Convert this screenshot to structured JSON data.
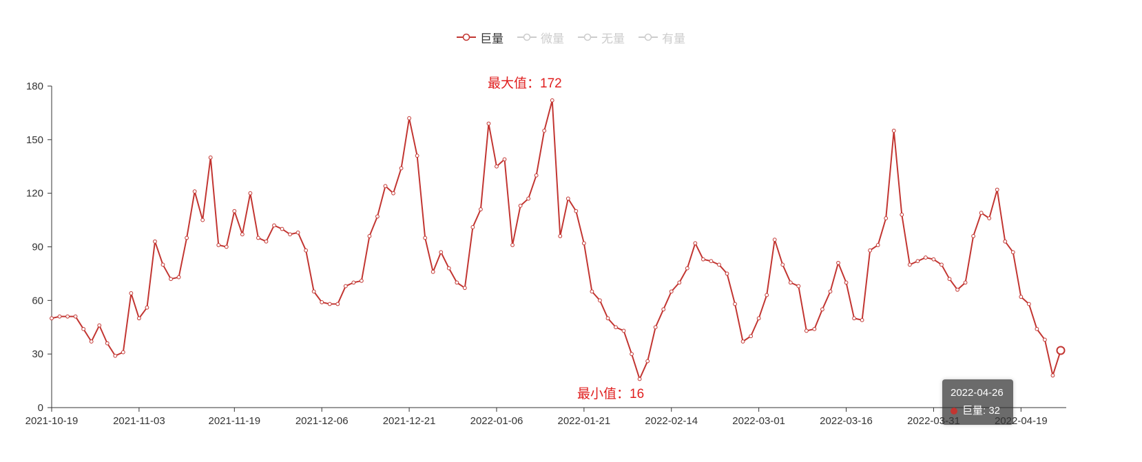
{
  "legend": {
    "items": [
      {
        "label": "巨量",
        "active": true
      },
      {
        "label": "微量",
        "active": false
      },
      {
        "label": "无量",
        "active": false
      },
      {
        "label": "有量",
        "active": false
      }
    ]
  },
  "annotations": {
    "max_label": "最大值：172",
    "min_label": "最小值：16"
  },
  "tooltip": {
    "date": "2022-04-26",
    "series": "巨量",
    "value": 32,
    "text": "巨量: 32"
  },
  "colors": {
    "series": "#c23531",
    "annotation": "#e01f1f",
    "inactive_legend": "#cccccc",
    "axis": "#333333",
    "tooltip_bg": "rgba(50,50,50,0.72)"
  },
  "chart_data": {
    "type": "line",
    "title": "",
    "legend_position": "top-center",
    "grid": false,
    "ylim": [
      0,
      180
    ],
    "y_ticks": [
      0,
      30,
      60,
      90,
      120,
      150,
      180
    ],
    "x_tick_labels": [
      "2021-10-19",
      "2021-11-03",
      "2021-11-19",
      "2021-12-06",
      "2021-12-21",
      "2022-01-06",
      "2022-01-21",
      "2022-02-14",
      "2022-03-01",
      "2022-03-16",
      "2022-03-31",
      "2022-04-19"
    ],
    "x_tick_indices": [
      0,
      11,
      23,
      34,
      45,
      56,
      67,
      78,
      89,
      100,
      111,
      122
    ],
    "x": [
      "2021-10-19",
      "2021-10-20",
      "2021-10-21",
      "2021-10-22",
      "2021-10-25",
      "2021-10-26",
      "2021-10-27",
      "2021-10-28",
      "2021-10-29",
      "2021-11-01",
      "2021-11-02",
      "2021-11-03",
      "2021-11-04",
      "2021-11-05",
      "2021-11-08",
      "2021-11-09",
      "2021-11-10",
      "2021-11-11",
      "2021-11-12",
      "2021-11-15",
      "2021-11-16",
      "2021-11-17",
      "2021-11-18",
      "2021-11-19",
      "2021-11-22",
      "2021-11-23",
      "2021-11-24",
      "2021-11-25",
      "2021-11-26",
      "2021-11-29",
      "2021-11-30",
      "2021-12-01",
      "2021-12-02",
      "2021-12-03",
      "2021-12-06",
      "2021-12-07",
      "2021-12-08",
      "2021-12-09",
      "2021-12-10",
      "2021-12-13",
      "2021-12-14",
      "2021-12-15",
      "2021-12-16",
      "2021-12-17",
      "2021-12-20",
      "2021-12-21",
      "2021-12-22",
      "2021-12-23",
      "2021-12-24",
      "2021-12-27",
      "2021-12-28",
      "2021-12-29",
      "2021-12-30",
      "2021-12-31",
      "2022-01-04",
      "2022-01-05",
      "2022-01-06",
      "2022-01-07",
      "2022-01-10",
      "2022-01-11",
      "2022-01-12",
      "2022-01-13",
      "2022-01-14",
      "2022-01-17",
      "2022-01-18",
      "2022-01-19",
      "2022-01-20",
      "2022-01-21",
      "2022-01-24",
      "2022-01-25",
      "2022-01-26",
      "2022-01-27",
      "2022-01-28",
      "2022-02-07",
      "2022-02-08",
      "2022-02-09",
      "2022-02-10",
      "2022-02-11",
      "2022-02-14",
      "2022-02-15",
      "2022-02-16",
      "2022-02-17",
      "2022-02-18",
      "2022-02-21",
      "2022-02-22",
      "2022-02-23",
      "2022-02-24",
      "2022-02-25",
      "2022-02-28",
      "2022-03-01",
      "2022-03-02",
      "2022-03-03",
      "2022-03-04",
      "2022-03-07",
      "2022-03-08",
      "2022-03-09",
      "2022-03-10",
      "2022-03-11",
      "2022-03-14",
      "2022-03-15",
      "2022-03-16",
      "2022-03-17",
      "2022-03-18",
      "2022-03-21",
      "2022-03-22",
      "2022-03-23",
      "2022-03-24",
      "2022-03-25",
      "2022-03-28",
      "2022-03-29",
      "2022-03-30",
      "2022-03-31",
      "2022-04-01",
      "2022-04-06",
      "2022-04-07",
      "2022-04-08",
      "2022-04-11",
      "2022-04-12",
      "2022-04-13",
      "2022-04-14",
      "2022-04-15",
      "2022-04-18",
      "2022-04-19",
      "2022-04-20",
      "2022-04-21",
      "2022-04-22",
      "2022-04-25",
      "2022-04-26"
    ],
    "series": [
      {
        "name": "巨量",
        "values": [
          50,
          51,
          51,
          51,
          44,
          37,
          46,
          36,
          29,
          31,
          64,
          50,
          56,
          93,
          80,
          72,
          73,
          95,
          121,
          105,
          140,
          91,
          90,
          110,
          97,
          120,
          95,
          93,
          102,
          100,
          97,
          98,
          88,
          65,
          59,
          58,
          58,
          68,
          70,
          71,
          96,
          107,
          124,
          120,
          134,
          162,
          141,
          95,
          76,
          87,
          78,
          70,
          67,
          101,
          111,
          159,
          135,
          139,
          91,
          113,
          117,
          130,
          155,
          172,
          96,
          117,
          110,
          92,
          65,
          60,
          50,
          45,
          43,
          30,
          16,
          26,
          45,
          55,
          65,
          70,
          78,
          92,
          83,
          82,
          80,
          75,
          58,
          37,
          40,
          50,
          63,
          94,
          80,
          70,
          68,
          43,
          44,
          55,
          65,
          81,
          70,
          50,
          49,
          88,
          91,
          106,
          155,
          108,
          80,
          82,
          84,
          83,
          80,
          72,
          66,
          70,
          96,
          109,
          106,
          122,
          93,
          87,
          62,
          58,
          44,
          38,
          18,
          32
        ]
      }
    ],
    "hidden_series": [
      "微量",
      "无量",
      "有量"
    ],
    "max_point": {
      "x": "2022-01-17",
      "value": 172
    },
    "min_point": {
      "x": "2022-02-08",
      "value": 16
    },
    "highlight_index": 127,
    "highlight_value": 32
  }
}
